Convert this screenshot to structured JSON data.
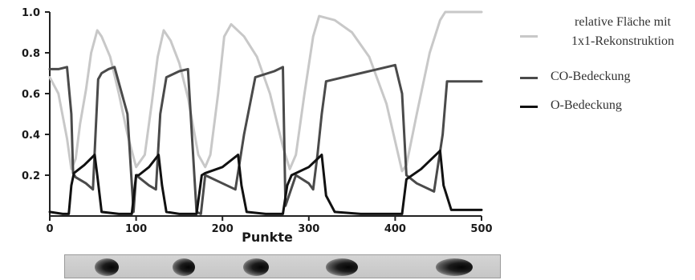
{
  "chart_data": {
    "type": "line",
    "xlabel": "Punkte",
    "x_ticks": [
      0,
      100,
      200,
      300,
      400,
      500
    ],
    "y_ticks": [
      0.2,
      0.4,
      0.6,
      0.8,
      1.0
    ],
    "y_tick_labels": [
      "0.2",
      "0.4",
      "0.6",
      "0.8",
      "1.0"
    ],
    "xlim": [
      0,
      500
    ],
    "ylim": [
      0,
      1.0
    ],
    "grid": false,
    "legend_position": "right",
    "series": [
      {
        "name": "relative Fläche mit\n1x1-Rekonstruktion",
        "color": "#c8c8c8",
        "x": [
          0,
          10,
          20,
          25,
          30,
          35,
          42,
          48,
          55,
          60,
          70,
          80,
          90,
          100,
          110,
          118,
          125,
          132,
          140,
          150,
          160,
          172,
          180,
          186,
          195,
          202,
          210,
          225,
          240,
          255,
          270,
          278,
          285,
          295,
          305,
          312,
          330,
          350,
          370,
          390,
          408,
          413,
          425,
          440,
          452,
          458,
          462,
          470,
          500
        ],
        "y": [
          0.68,
          0.6,
          0.38,
          0.23,
          0.28,
          0.45,
          0.62,
          0.8,
          0.91,
          0.88,
          0.78,
          0.6,
          0.4,
          0.24,
          0.3,
          0.55,
          0.78,
          0.91,
          0.86,
          0.75,
          0.58,
          0.3,
          0.24,
          0.3,
          0.6,
          0.88,
          0.94,
          0.88,
          0.78,
          0.6,
          0.34,
          0.23,
          0.3,
          0.6,
          0.88,
          0.98,
          0.96,
          0.9,
          0.78,
          0.55,
          0.22,
          0.25,
          0.5,
          0.8,
          0.96,
          1.0,
          1.0,
          1.0,
          1.0
        ]
      },
      {
        "name": "CO-Bedeckung",
        "color": "#4a4a4a",
        "x": [
          0,
          10,
          20,
          25,
          27,
          30,
          42,
          50,
          53,
          56,
          60,
          68,
          75,
          90,
          97,
          100,
          103,
          115,
          123,
          128,
          135,
          150,
          160,
          170,
          175,
          180,
          200,
          215,
          225,
          238,
          260,
          270,
          273,
          285,
          300,
          305,
          310,
          315,
          320,
          340,
          360,
          380,
          400,
          408,
          413,
          425,
          445,
          455,
          460,
          470,
          500
        ],
        "y": [
          0.72,
          0.72,
          0.73,
          0.5,
          0.21,
          0.19,
          0.16,
          0.13,
          0.4,
          0.67,
          0.7,
          0.72,
          0.73,
          0.5,
          0.02,
          0.2,
          0.19,
          0.15,
          0.13,
          0.5,
          0.68,
          0.71,
          0.72,
          0.02,
          0.01,
          0.2,
          0.16,
          0.13,
          0.4,
          0.68,
          0.71,
          0.73,
          0.05,
          0.2,
          0.16,
          0.13,
          0.3,
          0.5,
          0.66,
          0.68,
          0.7,
          0.72,
          0.74,
          0.6,
          0.2,
          0.16,
          0.12,
          0.4,
          0.66,
          0.66,
          0.66
        ]
      },
      {
        "name": "O-Bedeckung",
        "color": "#111111",
        "x": [
          0,
          15,
          22,
          25,
          28,
          40,
          52,
          55,
          60,
          80,
          95,
          100,
          103,
          115,
          126,
          130,
          135,
          150,
          170,
          176,
          180,
          200,
          218,
          222,
          228,
          250,
          270,
          275,
          280,
          300,
          315,
          320,
          330,
          360,
          390,
          408,
          413,
          430,
          452,
          456,
          465,
          500
        ],
        "y": [
          0.02,
          0.01,
          0.01,
          0.15,
          0.21,
          0.25,
          0.3,
          0.2,
          0.02,
          0.01,
          0.01,
          0.2,
          0.2,
          0.24,
          0.3,
          0.15,
          0.02,
          0.01,
          0.01,
          0.2,
          0.21,
          0.24,
          0.3,
          0.15,
          0.02,
          0.01,
          0.01,
          0.15,
          0.2,
          0.24,
          0.3,
          0.1,
          0.02,
          0.01,
          0.01,
          0.01,
          0.18,
          0.23,
          0.32,
          0.15,
          0.03,
          0.03
        ]
      }
    ]
  },
  "strip": {
    "blobs": [
      {
        "center": 40,
        "width": 30
      },
      {
        "center": 132,
        "width": 28
      },
      {
        "center": 218,
        "width": 32
      },
      {
        "center": 320,
        "width": 40
      },
      {
        "center": 453,
        "width": 46
      }
    ]
  }
}
